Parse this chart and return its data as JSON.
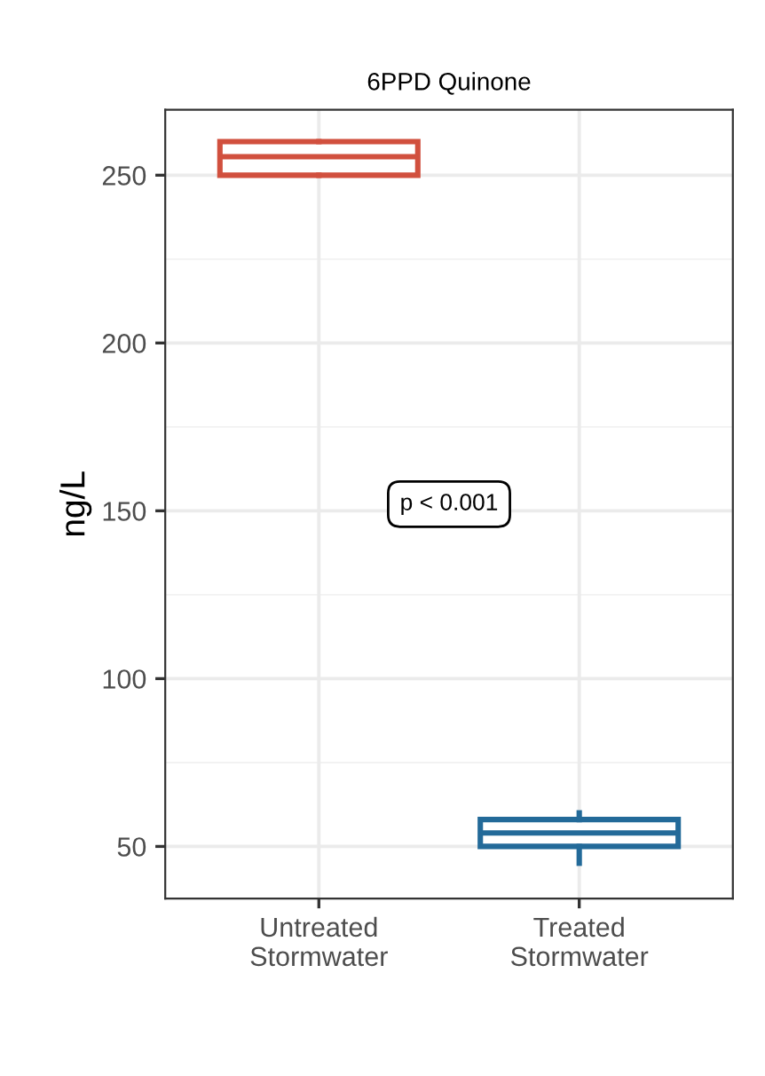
{
  "chart_data": {
    "type": "box",
    "title": "6PPD Quinone",
    "ylabel": "ng/L",
    "categories": [
      "Untreated\nStormwater",
      "Treated\nStormwater"
    ],
    "series": [
      {
        "color": "#d1503e",
        "boxes": [
          {
            "low": 250,
            "q1": 250,
            "median": 255.5,
            "q3": 260,
            "high": 260
          },
          null
        ]
      },
      {
        "color": "#236a99",
        "boxes": [
          null,
          {
            "low": 45,
            "q1": 50,
            "median": 54,
            "q3": 58,
            "high": 60
          }
        ]
      }
    ],
    "ylim": [
      34.5,
      269.5
    ],
    "yticks": [
      50,
      100,
      150,
      200,
      250
    ],
    "grid": true,
    "annotations": [
      "p < 0.001"
    ]
  }
}
